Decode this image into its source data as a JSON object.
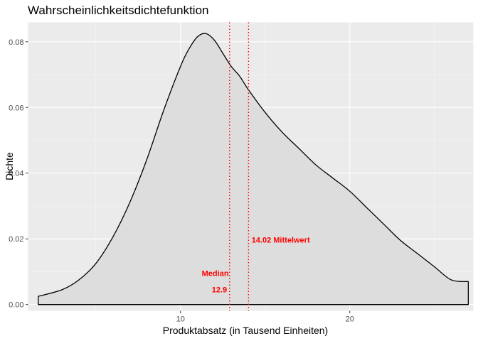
{
  "chart_data": {
    "type": "area",
    "title": "Wahrscheinlichkeitsdichtefunktion",
    "xlabel": "Produktabsatz (in Tausend Einheiten)",
    "ylabel": "Dichte",
    "xlim": [
      1,
      27.3
    ],
    "ylim": [
      -0.0019,
      0.0859
    ],
    "x_ticks": [
      10,
      20
    ],
    "x_tick_labels": [
      "10",
      "20"
    ],
    "x_minor_ticks": [
      5,
      15,
      25
    ],
    "y_ticks": [
      0.0,
      0.02,
      0.04,
      0.06,
      0.08
    ],
    "y_tick_labels": [
      "0.00",
      "0.02",
      "0.04",
      "0.06",
      "0.08"
    ],
    "grid": true,
    "series": [
      {
        "x": [
          1.6,
          3.0,
          4.0,
          5.0,
          6.0,
          7.0,
          8.0,
          9.0,
          10.0,
          10.5,
          11.0,
          11.5,
          12.0,
          12.5,
          13.0,
          13.5,
          14.0,
          15.0,
          16.0,
          17.0,
          18.0,
          19.0,
          20.0,
          21.0,
          22.0,
          23.0,
          24.0,
          25.0,
          26.0,
          27.0
        ],
        "y": [
          0.0025,
          0.0045,
          0.0075,
          0.0125,
          0.0205,
          0.031,
          0.044,
          0.059,
          0.0725,
          0.0778,
          0.0815,
          0.0825,
          0.0805,
          0.0765,
          0.0725,
          0.0695,
          0.0655,
          0.0585,
          0.0525,
          0.0475,
          0.0425,
          0.0385,
          0.0345,
          0.0295,
          0.0245,
          0.0195,
          0.0155,
          0.0115,
          0.0075,
          0.007
        ]
      }
    ],
    "fill_color": "#dddddd",
    "line_color": "#000000",
    "reference_lines": [
      {
        "x": 12.9,
        "color": "#ff0000",
        "style": "dotted"
      },
      {
        "x": 14.02,
        "color": "#ff0000",
        "style": "dotted"
      }
    ],
    "annotations": [
      {
        "text": "14.02 Mittelwert",
        "x": 14.2,
        "y": 0.0197,
        "anchor": "start"
      },
      {
        "text": "Median",
        "x": 12.85,
        "y": 0.0096,
        "anchor": "end"
      },
      {
        "text": "12.9",
        "x": 12.75,
        "y": 0.0046,
        "anchor": "end"
      }
    ]
  }
}
